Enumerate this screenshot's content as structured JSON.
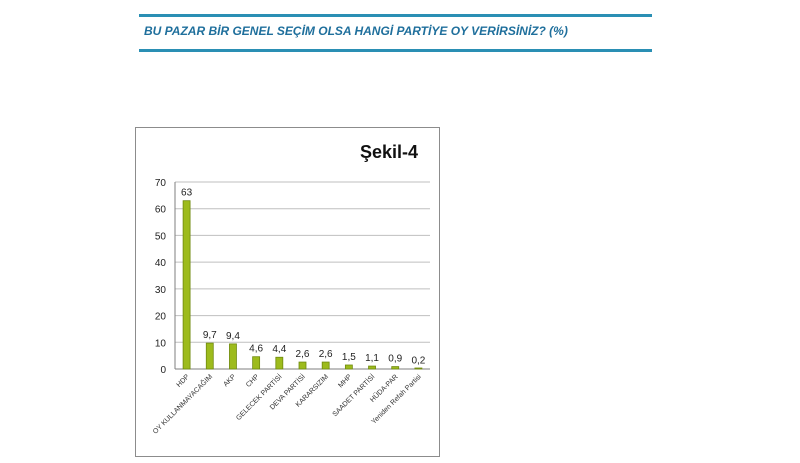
{
  "header": {
    "question": "BU PAZAR BİR GENEL SEÇİM OLSA HANGİ PARTİYE OY VERİRSİNİZ? (%)"
  },
  "colors": {
    "rule": "#2a8fb4",
    "question_text": "#1f6f9c",
    "bar": "#9dbb1c",
    "bar_dark": "#6f8a0e",
    "grid": "#bfbfbf"
  },
  "chart_data": {
    "type": "bar",
    "title": "Şekil-4",
    "categories": [
      "HDP",
      "OY KULLANMAYACAĞIM",
      "AKP",
      "CHP",
      "GELECEK PARTİSİ",
      "DEVA PARTİSİ",
      "KARARSIZIM",
      "MHP",
      "SAADET PARTİSİ",
      "HÜDA-PAR",
      "Yeniden Refah Partisi"
    ],
    "values": [
      63,
      9.7,
      9.4,
      4.6,
      4.4,
      2.6,
      2.6,
      1.5,
      1.1,
      0.9,
      0.2
    ],
    "value_labels": [
      "63",
      "9,7",
      "9,4",
      "4,6",
      "4,4",
      "2,6",
      "2,6",
      "1,5",
      "1,1",
      "0,9",
      "0,2"
    ],
    "yticks": [
      "0",
      "10",
      "20",
      "30",
      "40",
      "50",
      "60",
      "70"
    ],
    "ylim": [
      0,
      70
    ],
    "grid": true,
    "legend": "none"
  }
}
